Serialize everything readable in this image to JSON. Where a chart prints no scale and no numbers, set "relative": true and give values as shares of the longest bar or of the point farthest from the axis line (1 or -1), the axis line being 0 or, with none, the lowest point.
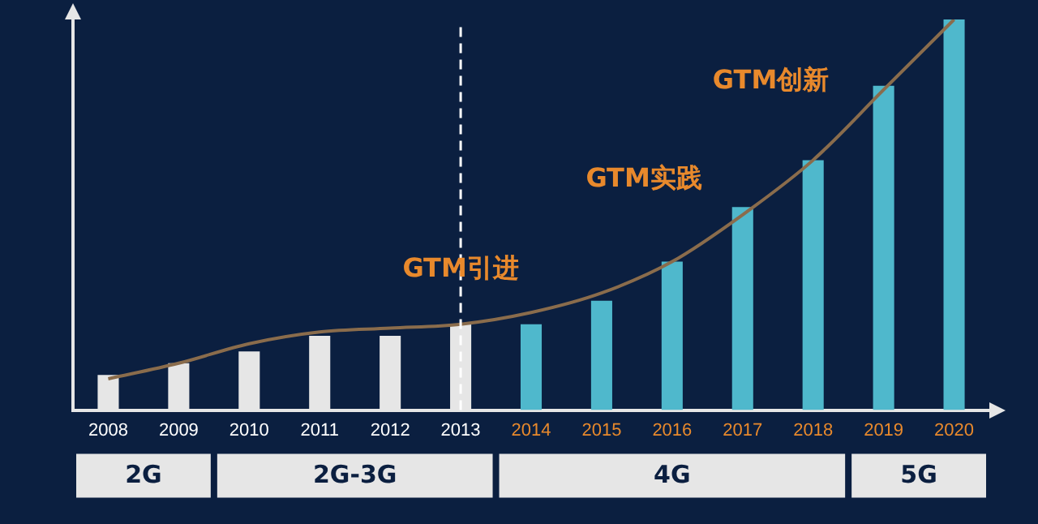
{
  "chart_data": {
    "type": "bar",
    "relative": true,
    "categories": [
      "2008",
      "2009",
      "2010",
      "2011",
      "2012",
      "2013",
      "2014",
      "2015",
      "2016",
      "2017",
      "2018",
      "2019",
      "2020"
    ],
    "series": [
      {
        "values": [
          0.09,
          0.12,
          0.15,
          0.19,
          0.19,
          0.22,
          0.22,
          0.28,
          0.38,
          0.52,
          0.64,
          0.83,
          1
        ],
        "colors": [
          "#e6e6e6",
          "#e6e6e6",
          "#e6e6e6",
          "#e6e6e6",
          "#e6e6e6",
          "#e6e6e6",
          "#4fb8cc",
          "#4fb8cc",
          "#4fb8cc",
          "#4fb8cc",
          "#4fb8cc",
          "#4fb8cc",
          "#4fb8cc"
        ]
      },
      {
        "type": "line",
        "color": "#8a6c4c",
        "values": [
          0.08,
          0.12,
          0.17,
          0.2,
          0.21,
          0.22,
          0.25,
          0.3,
          0.38,
          0.5,
          0.64,
          0.82,
          1
        ]
      }
    ],
    "ref_lines": [
      {
        "axis": "x",
        "value": "2013",
        "color": "#ffffff",
        "line_style": "dashed"
      }
    ],
    "annotations": [
      "GTM引进",
      "GTM实践",
      "GTM创新",
      "2G",
      "2G-3G",
      "4G",
      "5G"
    ],
    "legend": false,
    "grid": false
  }
}
